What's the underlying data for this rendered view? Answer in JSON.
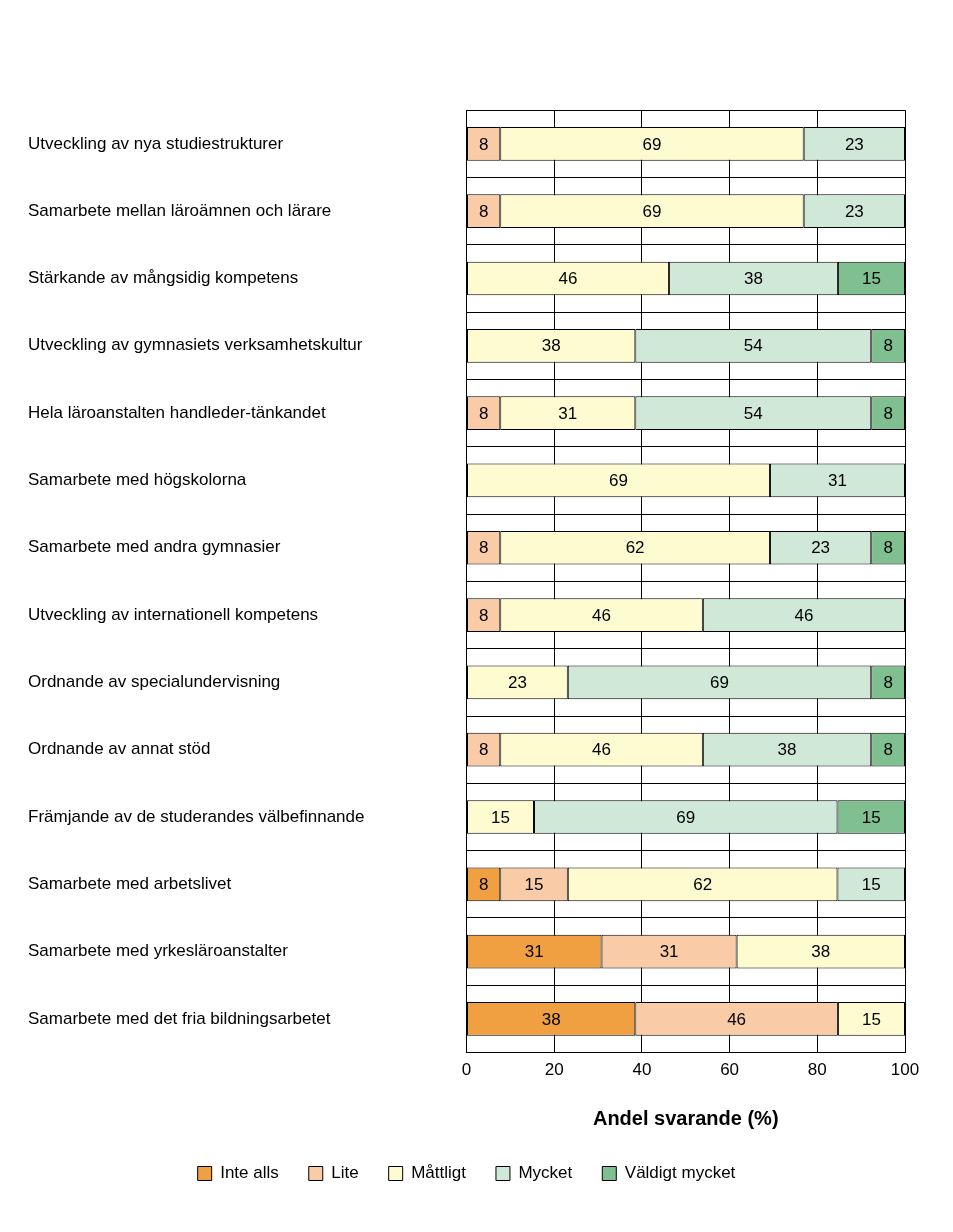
{
  "chart_data": {
    "type": "bar",
    "orientation": "horizontal",
    "stacked": true,
    "xlabel": "Andel svarande (%)",
    "categories": [
      "Utveckling av nya studiestrukturer",
      "Samarbete mellan läroämnen och lärare",
      "Stärkande av mångsidig kompetens",
      "Utveckling av gymnasiets verksamhetskultur",
      "Hela läroanstalten handleder-tänkandet",
      "Samarbete med högskolorna",
      "Samarbete med andra gymnasier",
      "Utveckling av internationell kompetens",
      "Ordnande av specialundervisning",
      "Ordnande av annat stöd",
      "Främjande av de studerandes välbefinnande",
      "Samarbete med arbetslivet",
      "Samarbete med yrkesläroanstalter",
      "Samarbete med det fria bildningsarbetet"
    ],
    "series": [
      {
        "name": "Inte alls",
        "color": "#f0a040",
        "values": [
          null,
          null,
          null,
          null,
          null,
          null,
          null,
          null,
          null,
          null,
          null,
          7.7,
          30.8,
          38.5
        ],
        "value_labels": [
          null,
          null,
          null,
          null,
          null,
          null,
          null,
          null,
          null,
          null,
          null,
          "8",
          "31",
          "38"
        ]
      },
      {
        "name": "Lite",
        "color": "#f9cba6",
        "values": [
          7.7,
          7.7,
          null,
          null,
          7.7,
          null,
          7.7,
          7.7,
          null,
          7.7,
          null,
          15.4,
          30.8,
          46.2
        ],
        "value_labels": [
          "8",
          "8",
          null,
          null,
          "8",
          null,
          "8",
          "8",
          null,
          "8",
          null,
          "15",
          "31",
          "46"
        ]
      },
      {
        "name": "Måttligt",
        "color": "#fdfbcf",
        "values": [
          69.2,
          69.2,
          46.2,
          38.5,
          30.8,
          69.2,
          61.5,
          46.2,
          23.1,
          46.2,
          15.4,
          61.5,
          38.4,
          15.3
        ],
        "value_labels": [
          "69",
          "69",
          "46",
          "38",
          "31",
          "69",
          "62",
          "46",
          "23",
          "46",
          "15",
          "62",
          "38",
          "15"
        ]
      },
      {
        "name": "Mycket",
        "color": "#cfe8d8",
        "values": [
          23.1,
          23.1,
          38.5,
          53.8,
          53.8,
          30.8,
          23.1,
          46.1,
          69.2,
          38.4,
          69.2,
          15.4,
          null,
          null
        ],
        "value_labels": [
          "23",
          "23",
          "38",
          "54",
          "54",
          "31",
          "23",
          "46",
          "69",
          "38",
          "69",
          "15",
          null,
          null
        ]
      },
      {
        "name": "Väldigt mycket",
        "color": "#7fbf90",
        "values": [
          null,
          null,
          15.3,
          7.7,
          7.7,
          null,
          7.7,
          null,
          7.7,
          7.7,
          15.4,
          null,
          null,
          null
        ],
        "value_labels": [
          null,
          null,
          "15",
          "8",
          "8",
          null,
          "8",
          null,
          "8",
          "8",
          "15",
          null,
          null,
          null
        ]
      }
    ],
    "xlim": [
      0,
      100
    ],
    "xticks": [
      0,
      20,
      40,
      60,
      80,
      100
    ],
    "grid": true,
    "legend": "bottom"
  }
}
